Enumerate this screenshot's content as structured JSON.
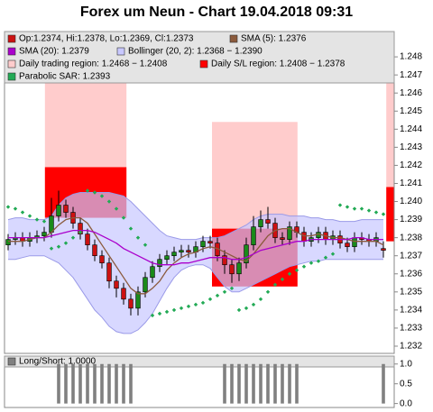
{
  "chart_data": {
    "type": "candlestick",
    "title": "Forex um Neun - Chart 19.04.2018 09:31",
    "ylim": [
      1.2316,
      1.2494
    ],
    "yticks": [
      1.232,
      1.233,
      1.234,
      1.235,
      1.236,
      1.237,
      1.238,
      1.239,
      {
        "value": 1.24,
        "label": "1.240"
      },
      1.241,
      1.242,
      1.243,
      1.244,
      1.245,
      1.246,
      1.247,
      1.248
    ],
    "regions": [
      {
        "name": "Daily trading region: 1.2468 − 1.2408",
        "color": "#ffcccc",
        "spans": [
          {
            "from": 5.1,
            "to": 16.4,
            "low": 1.2419,
            "high": 1.2494
          },
          {
            "from": 28.25,
            "to": 40.1,
            "low": 1.2385,
            "high": 1.2444
          },
          {
            "from": 52.4,
            "to": 53.5,
            "low": 1.2408,
            "high": 1.2468
          }
        ]
      },
      {
        "name": "Daily S/L region: 1.2408 − 1.2378",
        "color": "#ff0000",
        "spans": [
          {
            "from": 5.1,
            "to": 16.4,
            "low": 1.2391,
            "high": 1.2419
          },
          {
            "from": 28.25,
            "to": 40.1,
            "low": 1.2353,
            "high": 1.2385
          },
          {
            "from": 52.4,
            "to": 53.5,
            "low": 1.2378,
            "high": 1.2408
          }
        ]
      }
    ],
    "bollinger": {
      "name": "Bollinger (20, 2): 1.2368 − 1.2390",
      "color": "#c8c8ff",
      "upper": [
        1.239,
        1.2391,
        1.2391,
        1.239,
        1.239,
        1.239,
        1.2392,
        1.2398,
        1.2402,
        1.2404,
        1.2405,
        1.2405,
        1.2405,
        1.2405,
        1.2405,
        1.2404,
        1.2403,
        1.24,
        1.2396,
        1.2392,
        1.2388,
        1.2384,
        1.2381,
        1.238,
        1.2379,
        1.2379,
        1.2379,
        1.238,
        1.238,
        1.238,
        1.2381,
        1.2383,
        1.2385,
        1.2387,
        1.239,
        1.2392,
        1.2393,
        1.2393,
        1.2393,
        1.2392,
        1.2392,
        1.2392,
        1.2391,
        1.2391,
        1.239,
        1.239,
        1.2389,
        1.2389,
        1.2389,
        1.239,
        1.239,
        1.239,
        1.239
      ],
      "lower": [
        1.2368,
        1.2368,
        1.2369,
        1.237,
        1.237,
        1.237,
        1.2368,
        1.2366,
        1.2362,
        1.2358,
        1.2352,
        1.2346,
        1.234,
        1.2336,
        1.2331,
        1.2328,
        1.2327,
        1.2327,
        1.2329,
        1.2333,
        1.2338,
        1.2345,
        1.2352,
        1.2358,
        1.2362,
        1.2364,
        1.2365,
        1.2365,
        1.2363,
        1.2358,
        1.2353,
        1.235,
        1.235,
        1.2352,
        1.2354,
        1.2356,
        1.2358,
        1.236,
        1.2362,
        1.2364,
        1.2365,
        1.2366,
        1.2367,
        1.2367,
        1.2368,
        1.2368,
        1.2368,
        1.2368,
        1.2368,
        1.2368,
        1.2368,
        1.2368,
        1.2368
      ]
    },
    "candles": {
      "name": "Op:1.2374, Hi:1.2378, Lo:1.2369, Cl:1.2373",
      "color": "#cc1111",
      "up_color": "#1a8a1a",
      "open": [
        1.2376,
        1.2379,
        1.238,
        1.2378,
        1.238,
        1.2381,
        1.2383,
        1.2392,
        1.2398,
        1.2394,
        1.2388,
        1.2382,
        1.2376,
        1.237,
        1.2366,
        1.2356,
        1.2352,
        1.2346,
        1.2341,
        1.235,
        1.2358,
        1.2364,
        1.2368,
        1.237,
        1.2372,
        1.2373,
        1.2372,
        1.2375,
        1.2378,
        1.2377,
        1.237,
        1.2365,
        1.236,
        1.2366,
        1.2376,
        1.2386,
        1.239,
        1.2388,
        1.238,
        1.2379,
        1.2386,
        1.2383,
        1.2378,
        1.238,
        1.2383,
        1.2379,
        1.2381,
        1.2377,
        1.2375,
        1.238,
        1.2379,
        1.2378,
        1.2374
      ],
      "high": [
        1.2382,
        1.2383,
        1.2383,
        1.2383,
        1.2384,
        1.2386,
        1.2402,
        1.2406,
        1.2401,
        1.2397,
        1.2391,
        1.2385,
        1.2379,
        1.2373,
        1.2369,
        1.2359,
        1.2355,
        1.2349,
        1.2353,
        1.2361,
        1.2367,
        1.2371,
        1.2373,
        1.2375,
        1.2376,
        1.2376,
        1.2378,
        1.2381,
        1.2381,
        1.238,
        1.2373,
        1.2368,
        1.2369,
        1.238,
        1.2392,
        1.2395,
        1.2397,
        1.2391,
        1.2383,
        1.2389,
        1.2389,
        1.2386,
        1.2383,
        1.2386,
        1.2386,
        1.2384,
        1.2384,
        1.238,
        1.2383,
        1.2383,
        1.2382,
        1.2383,
        1.2378
      ],
      "low": [
        1.2373,
        1.2376,
        1.2375,
        1.2375,
        1.2377,
        1.2378,
        1.238,
        1.2389,
        1.2391,
        1.2385,
        1.2379,
        1.2373,
        1.2367,
        1.2363,
        1.2352,
        1.2347,
        1.2343,
        1.2337,
        1.2337,
        1.2347,
        1.2355,
        1.2361,
        1.2365,
        1.2367,
        1.2369,
        1.2369,
        1.2369,
        1.2372,
        1.2374,
        1.2367,
        1.236,
        1.2355,
        1.2356,
        1.2363,
        1.2373,
        1.2383,
        1.2385,
        1.2377,
        1.2376,
        1.2376,
        1.238,
        1.2375,
        1.2375,
        1.2377,
        1.2376,
        1.2376,
        1.2374,
        1.2372,
        1.2372,
        1.2376,
        1.2375,
        1.2375,
        1.2369
      ],
      "close": [
        1.2379,
        1.238,
        1.2378,
        1.238,
        1.2381,
        1.2383,
        1.2392,
        1.2398,
        1.2394,
        1.2388,
        1.2382,
        1.2376,
        1.237,
        1.2366,
        1.2356,
        1.2352,
        1.2346,
        1.2341,
        1.235,
        1.2358,
        1.2364,
        1.2368,
        1.237,
        1.2372,
        1.2373,
        1.2372,
        1.2375,
        1.2378,
        1.2377,
        1.237,
        1.2365,
        1.236,
        1.2366,
        1.2376,
        1.2386,
        1.239,
        1.2388,
        1.238,
        1.2379,
        1.2386,
        1.2383,
        1.2378,
        1.238,
        1.2383,
        1.2379,
        1.2381,
        1.2377,
        1.2375,
        1.238,
        1.2379,
        1.2378,
        1.238,
        1.2373
      ]
    },
    "series": [
      {
        "name": "SMA (5): 1.2376",
        "color": "#8b5a3c",
        "values": [
          1.2378,
          1.2378,
          1.2378,
          1.2379,
          1.238,
          1.238,
          1.2383,
          1.2387,
          1.239,
          1.2391,
          1.2391,
          1.2388,
          1.2382,
          1.2376,
          1.237,
          1.2364,
          1.2358,
          1.2352,
          1.2349,
          1.2349,
          1.2352,
          1.2356,
          1.2362,
          1.2366,
          1.2369,
          1.2371,
          1.2372,
          1.2374,
          1.2375,
          1.2374,
          1.2372,
          1.237,
          1.2368,
          1.2367,
          1.2371,
          1.2376,
          1.2381,
          1.2384,
          1.2385,
          1.2385,
          1.2383,
          1.2381,
          1.2381,
          1.2382,
          1.2381,
          1.238,
          1.238,
          1.2379,
          1.2378,
          1.2378,
          1.2378,
          1.2378,
          1.2376
        ]
      },
      {
        "name": "SMA (20): 1.2379",
        "color": "#aa00cc",
        "values": [
          1.238,
          1.238,
          1.238,
          1.238,
          1.238,
          1.238,
          1.2381,
          1.2382,
          1.2383,
          1.2384,
          1.2384,
          1.2384,
          1.2383,
          1.2381,
          1.2379,
          1.2377,
          1.2374,
          1.2372,
          1.237,
          1.2368,
          1.2366,
          1.2365,
          1.2365,
          1.2365,
          1.2366,
          1.2366,
          1.2367,
          1.2368,
          1.2369,
          1.2369,
          1.2369,
          1.2368,
          1.2368,
          1.2369,
          1.2371,
          1.2373,
          1.2374,
          1.2375,
          1.2376,
          1.2377,
          1.2378,
          1.2378,
          1.2379,
          1.2379,
          1.2379,
          1.2379,
          1.2379,
          1.2379,
          1.238,
          1.238,
          1.2379,
          1.2379,
          1.2379
        ]
      }
    ],
    "sar": {
      "name": "Parabolic SAR: 1.2393",
      "color": "#22aa55",
      "values": [
        1.2397,
        1.2396,
        1.2394,
        1.2392,
        1.239,
        1.2389,
        1.2374,
        1.2375,
        1.2377,
        1.238,
        1.2383,
        1.2406,
        1.2405,
        1.2403,
        1.24,
        1.2396,
        1.2391,
        1.2385,
        1.238,
        1.2376,
        1.2337,
        1.2338,
        1.2339,
        1.234,
        1.2341,
        1.2342,
        1.2343,
        1.2344,
        1.2346,
        1.2348,
        1.235,
        1.2352,
        1.234,
        1.2341,
        1.2343,
        1.2346,
        1.235,
        1.2354,
        1.2357,
        1.236,
        1.2362,
        1.2364,
        1.2366,
        1.2367,
        1.2369,
        1.2371,
        1.2398,
        1.2397,
        1.2396,
        1.2396,
        1.2395,
        1.2394,
        1.2393
      ]
    },
    "indicator": {
      "name": "Long/Short: 1.0000",
      "color": "#808080",
      "ylim": [
        -0.1,
        1.2
      ],
      "yticks": [
        {
          "value": 0,
          "label": "0.0"
        },
        {
          "value": 0.5,
          "label": "0.5"
        },
        {
          "value": 1,
          "label": "1.0"
        }
      ],
      "values": [
        0,
        0,
        0,
        0,
        0,
        0,
        0,
        1,
        1,
        1,
        1,
        1,
        1,
        1,
        1,
        1,
        1,
        1,
        0,
        0,
        0,
        0,
        0,
        0,
        0,
        0,
        0,
        0,
        0,
        0,
        1,
        1,
        1,
        1,
        1,
        1,
        1,
        1,
        1,
        1,
        1,
        0,
        0,
        0,
        0,
        0,
        0,
        0,
        0,
        0,
        0,
        0,
        1
      ]
    }
  }
}
